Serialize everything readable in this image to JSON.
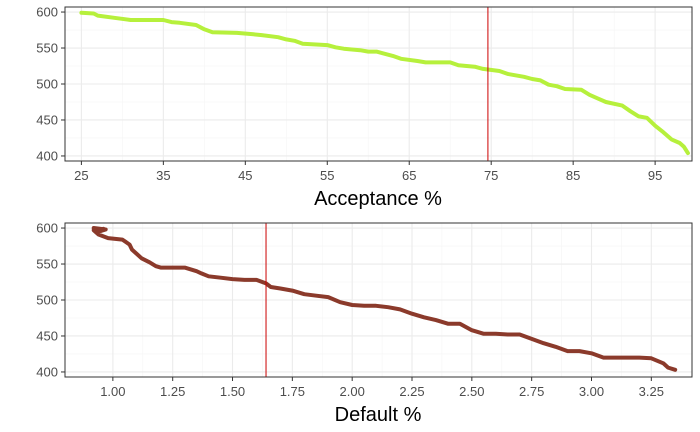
{
  "colors": {
    "acceptance_line": "#b6f03c",
    "default_line": "#8b3a2b",
    "marker_line": "#cc0000",
    "grid_major": "#ebebeb",
    "grid_minor": "#f5f5f5",
    "panel_border": "#333333"
  },
  "chart_data": [
    {
      "type": "line",
      "xlabel": "Acceptance %",
      "ylabel": "",
      "xlim": [
        23,
        99.5
      ],
      "ylim": [
        393,
        607
      ],
      "xticks": [
        25,
        35,
        45,
        55,
        65,
        75,
        85,
        95
      ],
      "xtick_labels": [
        "25",
        "35",
        "45",
        "55",
        "65",
        "75",
        "85",
        "95"
      ],
      "yticks": [
        400,
        450,
        500,
        550,
        600
      ],
      "ytick_labels": [
        "400",
        "450",
        "500",
        "550",
        "600"
      ],
      "grid": true,
      "vline": 74.6,
      "series": [
        {
          "x": [
            25,
            26.5,
            27,
            29,
            31,
            35,
            36,
            37,
            39,
            40,
            41,
            44,
            46,
            47,
            49,
            50,
            51,
            52,
            55,
            56,
            57,
            59,
            60,
            61,
            63,
            64,
            66,
            67,
            70,
            71,
            73,
            74,
            76,
            77,
            79,
            80,
            81,
            82,
            83,
            84,
            86,
            87,
            88,
            89,
            91,
            92,
            93,
            94,
            95,
            96,
            97,
            98,
            98.5,
            99
          ],
          "y": [
            599,
            598,
            595,
            592,
            589,
            589,
            586,
            585,
            582,
            576,
            572,
            571,
            569,
            568,
            565,
            562,
            560,
            556,
            554,
            551,
            549,
            547,
            545,
            545,
            539,
            535,
            532,
            530,
            530,
            526,
            524,
            521,
            518,
            514,
            510,
            507,
            505,
            499,
            497,
            493,
            492,
            485,
            480,
            475,
            470,
            462,
            455,
            453,
            442,
            433,
            423,
            418,
            413,
            404
          ]
        }
      ]
    },
    {
      "type": "line",
      "xlabel": "Default %",
      "ylabel": "",
      "xlim": [
        0.8,
        3.42
      ],
      "ylim": [
        393,
        607
      ],
      "xticks": [
        1.0,
        1.25,
        1.5,
        1.75,
        2.0,
        2.25,
        2.5,
        2.75,
        3.0,
        3.25
      ],
      "xtick_labels": [
        "1.00",
        "1.25",
        "1.50",
        "1.75",
        "2.00",
        "2.25",
        "2.50",
        "2.75",
        "3.00",
        "3.25"
      ],
      "yticks": [
        400,
        450,
        500,
        550,
        600
      ],
      "ytick_labels": [
        "400",
        "450",
        "500",
        "550",
        "600"
      ],
      "grid": true,
      "vline": 1.64,
      "series": [
        {
          "x": [
            0.92,
            0.97,
            0.93,
            0.96,
            0.92,
            0.94,
            0.98,
            1.04,
            1.07,
            1.08,
            1.12,
            1.15,
            1.16,
            1.18,
            1.2,
            1.25,
            1.3,
            1.35,
            1.37,
            1.4,
            1.45,
            1.5,
            1.55,
            1.6,
            1.64,
            1.66,
            1.7,
            1.75,
            1.8,
            1.85,
            1.9,
            1.95,
            2.0,
            2.05,
            2.1,
            2.15,
            2.2,
            2.25,
            2.3,
            2.35,
            2.4,
            2.45,
            2.5,
            2.55,
            2.6,
            2.65,
            2.7,
            2.75,
            2.8,
            2.85,
            2.9,
            2.95,
            3.0,
            3.05,
            3.1,
            3.15,
            3.2,
            3.25,
            3.3,
            3.32,
            3.35
          ],
          "y": [
            600,
            598,
            594,
            599,
            597,
            591,
            586,
            584,
            577,
            570,
            558,
            553,
            551,
            547,
            545,
            545,
            545,
            540,
            537,
            533,
            531,
            529,
            528,
            528,
            523,
            518,
            516,
            513,
            508,
            506,
            504,
            497,
            493,
            492,
            492,
            490,
            487,
            481,
            476,
            472,
            467,
            467,
            458,
            453,
            453,
            452,
            452,
            446,
            440,
            435,
            429,
            429,
            426,
            420,
            420,
            420,
            420,
            419,
            412,
            406,
            403
          ]
        }
      ]
    }
  ]
}
